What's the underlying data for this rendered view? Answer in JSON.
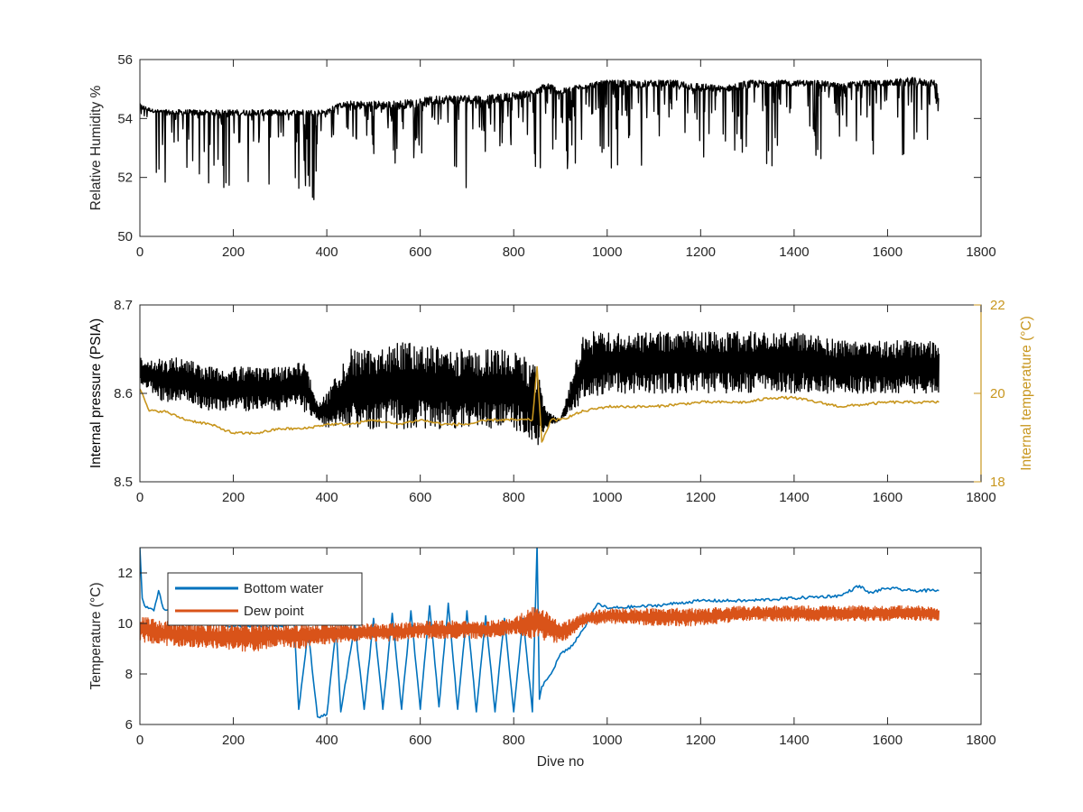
{
  "chart_data": [
    {
      "type": "line",
      "ylabel": "Relative Humidity %",
      "xlabel": "",
      "xlim": [
        0,
        1800
      ],
      "ylim": [
        50,
        56
      ],
      "x_ticks": [
        0,
        200,
        400,
        600,
        800,
        1000,
        1200,
        1400,
        1600,
        1800
      ],
      "y_ticks": [
        50,
        52,
        54,
        56
      ],
      "grid": false,
      "series": [
        {
          "color": "#000000",
          "style": "dense oscillating trace",
          "x": [
            0,
            30,
            60,
            100,
            150,
            200,
            250,
            300,
            350,
            380,
            400,
            420,
            450,
            500,
            550,
            600,
            650,
            700,
            750,
            800,
            850,
            870,
            900,
            950,
            1000,
            1050,
            1100,
            1150,
            1200,
            1250,
            1300,
            1350,
            1400,
            1450,
            1500,
            1550,
            1600,
            1650,
            1700,
            1710
          ],
          "upper": [
            54.5,
            54.3,
            54.3,
            54.3,
            54.3,
            54.3,
            54.3,
            54.3,
            54.3,
            54.3,
            54.3,
            54.5,
            54.6,
            54.6,
            54.6,
            54.7,
            54.8,
            54.8,
            54.8,
            54.9,
            55.0,
            55.3,
            55.0,
            55.2,
            55.3,
            55.3,
            55.3,
            55.3,
            55.2,
            55.1,
            55.3,
            55.3,
            55.3,
            55.3,
            55.2,
            55.3,
            55.3,
            55.4,
            55.3,
            55.3
          ],
          "lower": [
            54.2,
            51.4,
            51.4,
            51.9,
            51.6,
            51.4,
            51.3,
            51.4,
            51.3,
            51.1,
            51.2,
            54.3,
            53.0,
            52.7,
            52.4,
            52.7,
            52.4,
            51.6,
            52.0,
            52.7,
            51.9,
            52.8,
            51.8,
            52.6,
            52.3,
            52.4,
            52.4,
            52.6,
            52.1,
            52.7,
            52.5,
            52.3,
            52.6,
            52.6,
            52.7,
            52.3,
            52.4,
            52.4,
            53.6,
            53.9
          ],
          "baseline": [
            54.3,
            54.2,
            54.1,
            54.1,
            54.1,
            54.1,
            54.1,
            54.1,
            54.1,
            54.1,
            54.1,
            54.4,
            54.3,
            54.3,
            54.3,
            54.4,
            54.5,
            54.5,
            54.5,
            54.6,
            54.8,
            54.8,
            54.8,
            55.0,
            55.1,
            55.0,
            55.1,
            55.0,
            54.9,
            54.9,
            55.0,
            55.1,
            55.1,
            55.1,
            55.0,
            55.1,
            55.1,
            55.1,
            55.1,
            54.0
          ]
        }
      ]
    },
    {
      "type": "line",
      "ylabel": "Internal pressure (PSIA)",
      "y2label": "Internal temperature (°C)",
      "xlabel": "",
      "xlim": [
        0,
        1800
      ],
      "ylim": [
        8.5,
        8.7
      ],
      "y2lim": [
        18,
        22
      ],
      "x_ticks": [
        0,
        200,
        400,
        600,
        800,
        1000,
        1200,
        1400,
        1600,
        1800
      ],
      "y_ticks": [
        "8.5",
        "8.6",
        "8.7"
      ],
      "y2_ticks": [
        "18",
        "20",
        "22"
      ],
      "grid": false,
      "right_axis_color": "#C8961E",
      "series": [
        {
          "axis": "left",
          "color": "#000000",
          "style": "dense oscillating trace",
          "x": [
            0,
            50,
            100,
            150,
            200,
            250,
            300,
            330,
            350,
            380,
            400,
            450,
            500,
            550,
            600,
            650,
            700,
            750,
            800,
            850,
            870,
            900,
            950,
            1000,
            1100,
            1200,
            1300,
            1350,
            1400,
            1500,
            1600,
            1700,
            1710
          ],
          "upper": [
            8.64,
            8.64,
            8.64,
            8.63,
            8.63,
            8.63,
            8.63,
            8.63,
            8.64,
            8.59,
            8.6,
            8.65,
            8.65,
            8.66,
            8.66,
            8.65,
            8.65,
            8.65,
            8.65,
            8.63,
            8.58,
            8.57,
            8.67,
            8.67,
            8.67,
            8.67,
            8.67,
            8.67,
            8.67,
            8.66,
            8.66,
            8.66,
            8.65
          ],
          "lower": [
            8.61,
            8.59,
            8.59,
            8.58,
            8.58,
            8.58,
            8.58,
            8.59,
            8.58,
            8.57,
            8.56,
            8.56,
            8.56,
            8.56,
            8.56,
            8.56,
            8.56,
            8.56,
            8.56,
            8.54,
            8.56,
            8.57,
            8.59,
            8.6,
            8.6,
            8.6,
            8.6,
            8.6,
            8.6,
            8.6,
            8.6,
            8.6,
            8.6
          ]
        },
        {
          "axis": "right",
          "color": "#C8961E",
          "x": [
            0,
            20,
            50,
            100,
            150,
            200,
            250,
            300,
            350,
            400,
            450,
            500,
            550,
            600,
            650,
            700,
            750,
            800,
            840,
            850,
            860,
            880,
            900,
            950,
            1000,
            1100,
            1200,
            1300,
            1350,
            1400,
            1450,
            1500,
            1600,
            1700,
            1710
          ],
          "y": [
            20.1,
            19.6,
            19.6,
            19.4,
            19.3,
            19.1,
            19.1,
            19.2,
            19.2,
            19.3,
            19.3,
            19.4,
            19.3,
            19.4,
            19.3,
            19.3,
            19.4,
            19.4,
            19.4,
            20.6,
            18.9,
            19.4,
            19.4,
            19.6,
            19.7,
            19.7,
            19.8,
            19.8,
            19.9,
            19.9,
            19.8,
            19.7,
            19.8,
            19.8,
            19.8
          ]
        }
      ]
    },
    {
      "type": "line",
      "ylabel": "Temperature (°C)",
      "xlabel": "Dive no",
      "xlim": [
        0,
        1800
      ],
      "ylim": [
        6,
        13
      ],
      "x_ticks": [
        0,
        200,
        400,
        600,
        800,
        1000,
        1200,
        1400,
        1600,
        1800
      ],
      "y_ticks": [
        6,
        8,
        10,
        12
      ],
      "grid": false,
      "legend": {
        "placement": "top-left",
        "entries": [
          {
            "label": "Bottom water",
            "color": "#0072BD"
          },
          {
            "label": "Dew point",
            "color": "#D95319"
          }
        ]
      },
      "series": [
        {
          "name": "Bottom water",
          "color": "#0072BD",
          "x": [
            0,
            5,
            10,
            30,
            40,
            50,
            100,
            150,
            200,
            250,
            300,
            330,
            340,
            360,
            380,
            400,
            420,
            430,
            460,
            480,
            500,
            520,
            540,
            560,
            580,
            600,
            620,
            640,
            660,
            680,
            700,
            720,
            740,
            760,
            780,
            800,
            820,
            840,
            850,
            855,
            860,
            880,
            900,
            920,
            950,
            980,
            1000,
            1100,
            1200,
            1300,
            1400,
            1500,
            1540,
            1560,
            1600,
            1650,
            1700,
            1710
          ],
          "y": [
            13.0,
            11.0,
            10.7,
            10.5,
            11.3,
            10.6,
            10.2,
            10.0,
            9.9,
            9.9,
            9.9,
            10.0,
            6.6,
            9.7,
            6.3,
            6.4,
            9.8,
            6.5,
            10.0,
            6.6,
            10.2,
            6.6,
            10.4,
            6.6,
            10.5,
            6.6,
            10.7,
            6.7,
            10.8,
            6.6,
            10.5,
            6.5,
            10.3,
            6.5,
            10.2,
            6.5,
            10.2,
            6.5,
            13.1,
            7.0,
            7.5,
            8.0,
            8.8,
            9.0,
            9.8,
            10.8,
            10.6,
            10.7,
            10.9,
            10.9,
            11.0,
            11.1,
            11.5,
            11.2,
            11.4,
            11.3,
            11.3,
            11.3
          ]
        },
        {
          "name": "Dew point",
          "color": "#D95319",
          "style": "dense oscillating trace",
          "x": [
            0,
            50,
            100,
            150,
            200,
            250,
            300,
            350,
            400,
            450,
            500,
            550,
            600,
            650,
            700,
            750,
            800,
            850,
            900,
            950,
            1000,
            1100,
            1200,
            1300,
            1400,
            1500,
            1600,
            1700,
            1710
          ],
          "upper": [
            10.3,
            10.1,
            10.0,
            10.0,
            10.0,
            10.0,
            10.0,
            10.0,
            10.0,
            10.0,
            10.0,
            10.0,
            10.1,
            10.1,
            10.1,
            10.1,
            10.2,
            10.8,
            10.0,
            10.4,
            10.6,
            10.6,
            10.6,
            10.7,
            10.7,
            10.7,
            10.7,
            10.7,
            10.6
          ],
          "lower": [
            9.3,
            9.1,
            9.1,
            9.0,
            8.9,
            8.9,
            9.1,
            9.0,
            9.2,
            9.3,
            9.3,
            9.3,
            9.4,
            9.4,
            9.4,
            9.4,
            9.6,
            9.3,
            9.2,
            9.9,
            10.0,
            9.9,
            9.9,
            10.1,
            10.1,
            10.1,
            10.1,
            10.1,
            10.1
          ]
        }
      ]
    }
  ]
}
